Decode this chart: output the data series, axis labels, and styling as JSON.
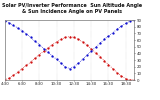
{
  "title": "Solar PV/Inverter Performance  Sun Altitude Angle & Sun Incidence Angle on PV Panels",
  "bg_color": "#ffffff",
  "plot_bg": "#ffffff",
  "grid_color": "#aaaaaa",
  "blue_color": "#0000cc",
  "red_color": "#cc0000",
  "ylim": [
    0,
    90
  ],
  "xlim": [
    4.5,
    19.5
  ],
  "time_points": [
    4.5,
    5.0,
    5.5,
    6.0,
    6.5,
    7.0,
    7.5,
    8.0,
    8.5,
    9.0,
    9.5,
    10.0,
    10.5,
    11.0,
    11.5,
    12.0,
    12.5,
    13.0,
    13.5,
    14.0,
    14.5,
    15.0,
    15.5,
    16.0,
    16.5,
    17.0,
    17.5,
    18.0,
    18.5,
    19.0,
    19.5
  ],
  "sun_altitude": [
    0,
    3,
    7,
    12,
    17,
    22,
    27,
    33,
    38,
    43,
    48,
    53,
    57,
    61,
    64,
    65,
    64,
    61,
    57,
    52,
    47,
    41,
    35,
    29,
    23,
    17,
    11,
    6,
    2,
    0,
    0
  ],
  "sun_incidence": [
    89,
    86,
    82,
    78,
    74,
    69,
    64,
    58,
    53,
    47,
    42,
    36,
    31,
    25,
    20,
    17,
    20,
    25,
    31,
    37,
    43,
    49,
    55,
    61,
    66,
    71,
    76,
    81,
    85,
    88,
    90
  ],
  "yticks": [
    0,
    10,
    20,
    30,
    40,
    50,
    60,
    70,
    80,
    90
  ],
  "ytick_labels": [
    "0",
    "10",
    "20",
    "30",
    "40",
    "50",
    "60",
    "70",
    "80",
    "90"
  ],
  "xtick_positions": [
    4.5,
    6.5,
    8.5,
    10.5,
    12.5,
    14.5,
    16.5,
    18.5
  ],
  "xtick_labels": [
    "4:30",
    "6:30",
    "8:30",
    "10:30",
    "12:30",
    "14:30",
    "16:30",
    "18:30"
  ],
  "title_fontsize": 3.5,
  "tick_fontsize": 2.8,
  "marker_size": 1.2
}
